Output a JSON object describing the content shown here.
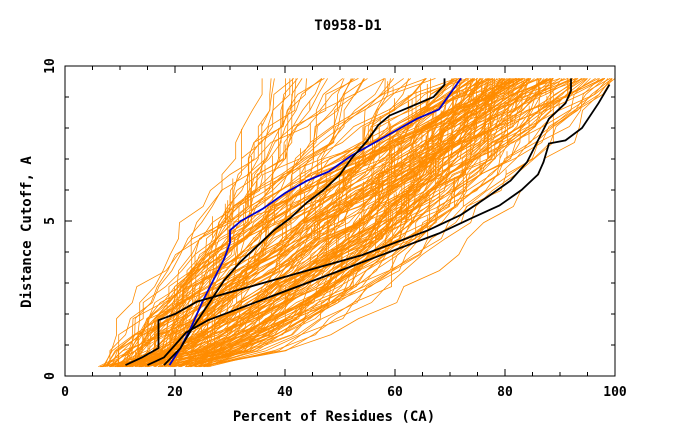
{
  "chart_data": {
    "type": "line",
    "title": "T0958-D1",
    "xlabel": "Percent of Residues (CA)",
    "ylabel": "Distance Cutoff, A",
    "xlim": [
      0,
      100
    ],
    "ylim": [
      0,
      10
    ],
    "x_ticks": [
      0,
      20,
      40,
      60,
      80,
      100
    ],
    "y_ticks": [
      0,
      5,
      10
    ],
    "grid": false,
    "background_series_color": "#ff8c00",
    "background_series_count": 180,
    "highlight_series": [
      {
        "color": "#0000cc",
        "points": [
          [
            19,
            0.35
          ],
          [
            21,
            0.9
          ],
          [
            23,
            1.6
          ],
          [
            25,
            2.4
          ],
          [
            27,
            3.1
          ],
          [
            29,
            3.8
          ],
          [
            30,
            4.3
          ],
          [
            30,
            4.7
          ],
          [
            32,
            5.0
          ],
          [
            36,
            5.4
          ],
          [
            40,
            5.9
          ],
          [
            44,
            6.3
          ],
          [
            48,
            6.6
          ],
          [
            52,
            7.1
          ],
          [
            56,
            7.5
          ],
          [
            60,
            7.9
          ],
          [
            64,
            8.3
          ],
          [
            68,
            8.6
          ],
          [
            70,
            9.1
          ],
          [
            72,
            9.6
          ]
        ]
      },
      {
        "color": "#000000",
        "points": [
          [
            18,
            0.35
          ],
          [
            21,
            0.9
          ],
          [
            23,
            1.5
          ],
          [
            26,
            2.3
          ],
          [
            29,
            3.1
          ],
          [
            32,
            3.7
          ],
          [
            35,
            4.2
          ],
          [
            38,
            4.7
          ],
          [
            41,
            5.1
          ],
          [
            44,
            5.6
          ],
          [
            47,
            6.0
          ],
          [
            50,
            6.5
          ],
          [
            52,
            7.0
          ],
          [
            55,
            7.6
          ],
          [
            57,
            8.1
          ],
          [
            59,
            8.4
          ],
          [
            63,
            8.7
          ],
          [
            67,
            9.0
          ],
          [
            69,
            9.4
          ],
          [
            69,
            9.6
          ]
        ]
      },
      {
        "color": "#000000",
        "points": [
          [
            11,
            0.35
          ],
          [
            14,
            0.6
          ],
          [
            17,
            0.9
          ],
          [
            17,
            1.5
          ],
          [
            17,
            1.8
          ],
          [
            20,
            2.0
          ],
          [
            24,
            2.4
          ],
          [
            30,
            2.7
          ],
          [
            36,
            3.0
          ],
          [
            42,
            3.3
          ],
          [
            48,
            3.6
          ],
          [
            54,
            3.9
          ],
          [
            60,
            4.3
          ],
          [
            66,
            4.7
          ],
          [
            72,
            5.2
          ],
          [
            77,
            5.8
          ],
          [
            81,
            6.3
          ],
          [
            84,
            6.9
          ],
          [
            86,
            7.6
          ],
          [
            88,
            8.3
          ],
          [
            91,
            8.8
          ],
          [
            92,
            9.2
          ],
          [
            92,
            9.6
          ]
        ]
      },
      {
        "color": "#000000",
        "points": [
          [
            15,
            0.35
          ],
          [
            18,
            0.6
          ],
          [
            20,
            1.0
          ],
          [
            22,
            1.4
          ],
          [
            26,
            1.8
          ],
          [
            32,
            2.2
          ],
          [
            38,
            2.6
          ],
          [
            44,
            3.0
          ],
          [
            50,
            3.4
          ],
          [
            56,
            3.8
          ],
          [
            62,
            4.2
          ],
          [
            68,
            4.6
          ],
          [
            74,
            5.1
          ],
          [
            79,
            5.5
          ],
          [
            83,
            6.0
          ],
          [
            86,
            6.5
          ],
          [
            87,
            6.9
          ],
          [
            88,
            7.5
          ],
          [
            91,
            7.6
          ],
          [
            94,
            8.0
          ],
          [
            97,
            8.8
          ],
          [
            99,
            9.4
          ]
        ]
      }
    ]
  }
}
